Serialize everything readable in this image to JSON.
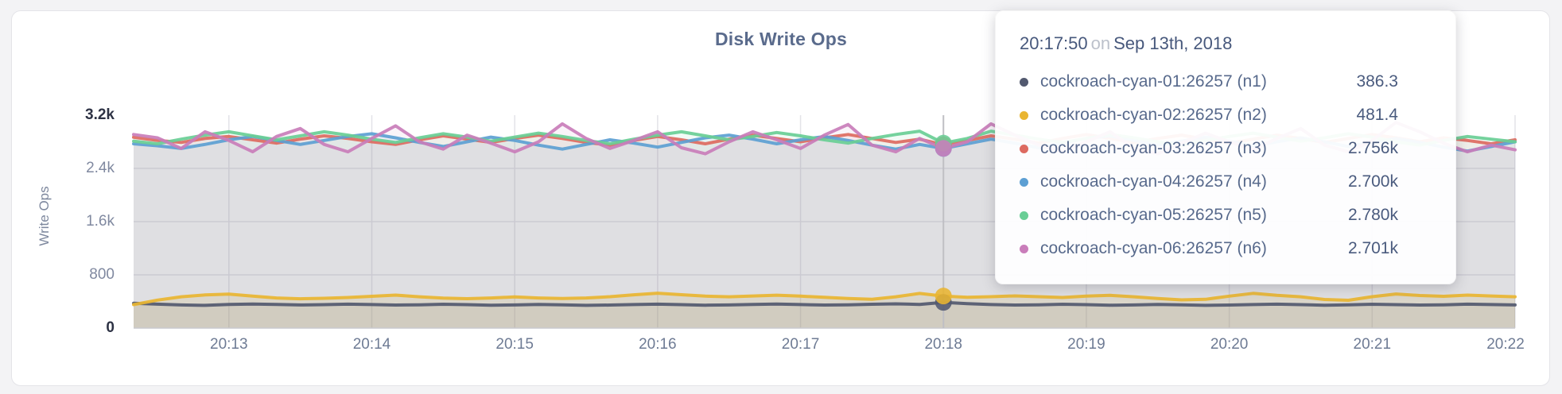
{
  "page": {
    "background": "#f3f3f5"
  },
  "panel": {
    "background": "#ffffff",
    "border_color": "#e4e4e8"
  },
  "tooltip": {
    "time": "20:17:50",
    "separator": "on",
    "date": "Sep 13th, 2018"
  },
  "chart_data": {
    "type": "line",
    "title": "Disk Write Ops",
    "xlabel": "",
    "ylabel": "Write Ops",
    "ylim": [
      0,
      3200
    ],
    "grid": true,
    "legend_position": "hover-tooltip",
    "y_ticks": [
      {
        "value": 0,
        "label": "0"
      },
      {
        "value": 800,
        "label": "800"
      },
      {
        "value": 1600,
        "label": "1.6k"
      },
      {
        "value": 2400,
        "label": "2.4k"
      },
      {
        "value": 3200,
        "label": "3.2k"
      }
    ],
    "x_ticks": [
      "20:13",
      "20:14",
      "20:15",
      "20:16",
      "20:17",
      "20:18",
      "20:19",
      "20:20",
      "20:21",
      "20:22"
    ],
    "x_tick_first_sec": 40,
    "x_tick_interval_sec": 60,
    "x_total_sec": 580,
    "hover": {
      "index": 34,
      "time": "20:17:50",
      "date": "Sep 13th, 2018"
    },
    "series": [
      {
        "name": "cockroach-cyan-01:26257 (n1)",
        "color": "#52596f",
        "hover_display": "386.3",
        "values": [
          372,
          360,
          348,
          342,
          355,
          362,
          356,
          348,
          352,
          360,
          354,
          346,
          350,
          358,
          352,
          344,
          348,
          356,
          350,
          342,
          346,
          354,
          360,
          352,
          344,
          348,
          356,
          362,
          354,
          346,
          350,
          358,
          364,
          356,
          386.3,
          366,
          354,
          346,
          350,
          358,
          352,
          344,
          348,
          356,
          350,
          342,
          346,
          354,
          360,
          352,
          344,
          350,
          358,
          352,
          346,
          350,
          360,
          354,
          348
        ]
      },
      {
        "name": "cockroach-cyan-02:26257 (n2)",
        "color": "#e9b531",
        "hover_display": "481.4",
        "values": [
          352,
          420,
          470,
          498,
          510,
          480,
          452,
          440,
          448,
          460,
          478,
          496,
          470,
          450,
          442,
          452,
          468,
          452,
          444,
          452,
          472,
          500,
          524,
          502,
          480,
          470,
          482,
          494,
          480,
          462,
          444,
          432,
          470,
          520,
          481.4,
          462,
          472,
          484,
          472,
          460,
          480,
          492,
          470,
          444,
          424,
          432,
          480,
          522,
          492,
          470,
          430,
          418,
          472,
          512,
          490,
          478,
          496,
          482,
          470
        ]
      },
      {
        "name": "cockroach-cyan-03:26257 (n3)",
        "color": "#dd6a60",
        "hover_display": "2.756k",
        "values": [
          2868,
          2820,
          2790,
          2850,
          2880,
          2830,
          2780,
          2840,
          2890,
          2850,
          2800,
          2760,
          2830,
          2890,
          2840,
          2790,
          2850,
          2900,
          2850,
          2790,
          2750,
          2820,
          2880,
          2830,
          2770,
          2840,
          2900,
          2850,
          2800,
          2860,
          2910,
          2850,
          2790,
          2840,
          2756,
          2820,
          2890,
          2840,
          2780,
          2850,
          2910,
          2850,
          2790,
          2850,
          2900,
          2840,
          2780,
          2840,
          2900,
          2850,
          2790,
          2850,
          2910,
          2860,
          2800,
          2860,
          2820,
          2770,
          2830
        ]
      },
      {
        "name": "cockroach-cyan-04:26257 (n4)",
        "color": "#5c9fd3",
        "hover_display": "2.700k",
        "values": [
          2770,
          2740,
          2700,
          2760,
          2830,
          2880,
          2820,
          2760,
          2820,
          2880,
          2920,
          2860,
          2790,
          2730,
          2800,
          2870,
          2820,
          2750,
          2690,
          2760,
          2830,
          2780,
          2720,
          2790,
          2860,
          2900,
          2840,
          2770,
          2830,
          2880,
          2820,
          2750,
          2690,
          2760,
          2700,
          2770,
          2840,
          2780,
          2710,
          2780,
          2850,
          2890,
          2820,
          2750,
          2810,
          2870,
          2810,
          2740,
          2800,
          2860,
          2800,
          2730,
          2790,
          2850,
          2790,
          2720,
          2660,
          2730,
          2800
        ]
      },
      {
        "name": "cockroach-cyan-05:26257 (n5)",
        "color": "#69ce95",
        "hover_display": "2.780k",
        "values": [
          2810,
          2770,
          2840,
          2900,
          2950,
          2890,
          2830,
          2890,
          2950,
          2900,
          2840,
          2790,
          2860,
          2920,
          2870,
          2810,
          2870,
          2930,
          2880,
          2820,
          2770,
          2840,
          2900,
          2950,
          2890,
          2830,
          2880,
          2940,
          2890,
          2830,
          2780,
          2850,
          2910,
          2960,
          2780,
          2850,
          2960,
          2900,
          2840,
          2790,
          2850,
          2910,
          2860,
          2800,
          2750,
          2820,
          2880,
          2930,
          2870,
          2810,
          2860,
          2920,
          2870,
          2800,
          2750,
          2820,
          2880,
          2840,
          2800
        ]
      },
      {
        "name": "cockroach-cyan-06:26257 (n6)",
        "color": "#c97dba",
        "hover_display": "2.701k",
        "values": [
          2910,
          2860,
          2700,
          2950,
          2820,
          2650,
          2880,
          3000,
          2760,
          2650,
          2850,
          3040,
          2800,
          2690,
          2900,
          2780,
          2650,
          2800,
          3070,
          2850,
          2700,
          2820,
          2950,
          2710,
          2620,
          2800,
          2950,
          2830,
          2700,
          2900,
          3060,
          2750,
          2650,
          2850,
          2701,
          2800,
          3070,
          2900,
          2750,
          2650,
          2800,
          2950,
          2700,
          2620,
          2780,
          2930,
          2800,
          2680,
          2850,
          3000,
          2750,
          2650,
          2820,
          3090,
          2950,
          2780,
          2650,
          2750,
          2680
        ]
      }
    ]
  }
}
